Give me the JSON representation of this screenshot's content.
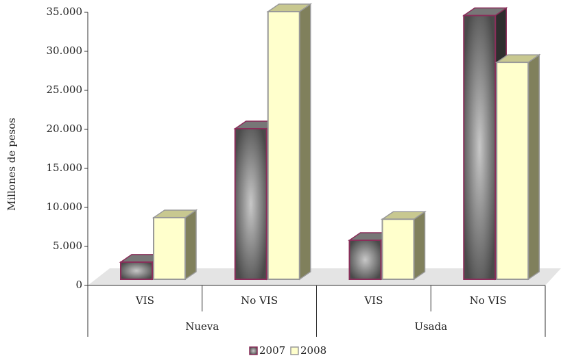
{
  "chart_data": {
    "type": "bar3d",
    "y_label": "Millones de pesos",
    "categories": [
      "VIS",
      "No VIS",
      "VIS",
      "No VIS"
    ],
    "groups": [
      {
        "name": "Nueva",
        "span": 2
      },
      {
        "name": "Usada",
        "span": 2
      }
    ],
    "series": [
      {
        "name": "2007",
        "color": "#5a5a5a",
        "values": [
          2200,
          19300,
          5000,
          33800
        ]
      },
      {
        "name": "2008",
        "color": "#ffffcc",
        "values": [
          7900,
          34300,
          7700,
          27800
        ]
      }
    ],
    "ylim": [
      0,
      35000
    ],
    "yticks": [
      0,
      {
        "value": 5000,
        "label": "5.000"
      },
      {
        "value": 10000,
        "label": "10.000"
      },
      {
        "value": 15000,
        "label": "15.000"
      },
      {
        "value": 20000,
        "label": "20.000"
      },
      {
        "value": 25000,
        "label": "25.000"
      },
      {
        "value": 30000,
        "label": "30.000"
      },
      {
        "value": 35000,
        "label": "35.000"
      }
    ],
    "legend": "bottom"
  }
}
